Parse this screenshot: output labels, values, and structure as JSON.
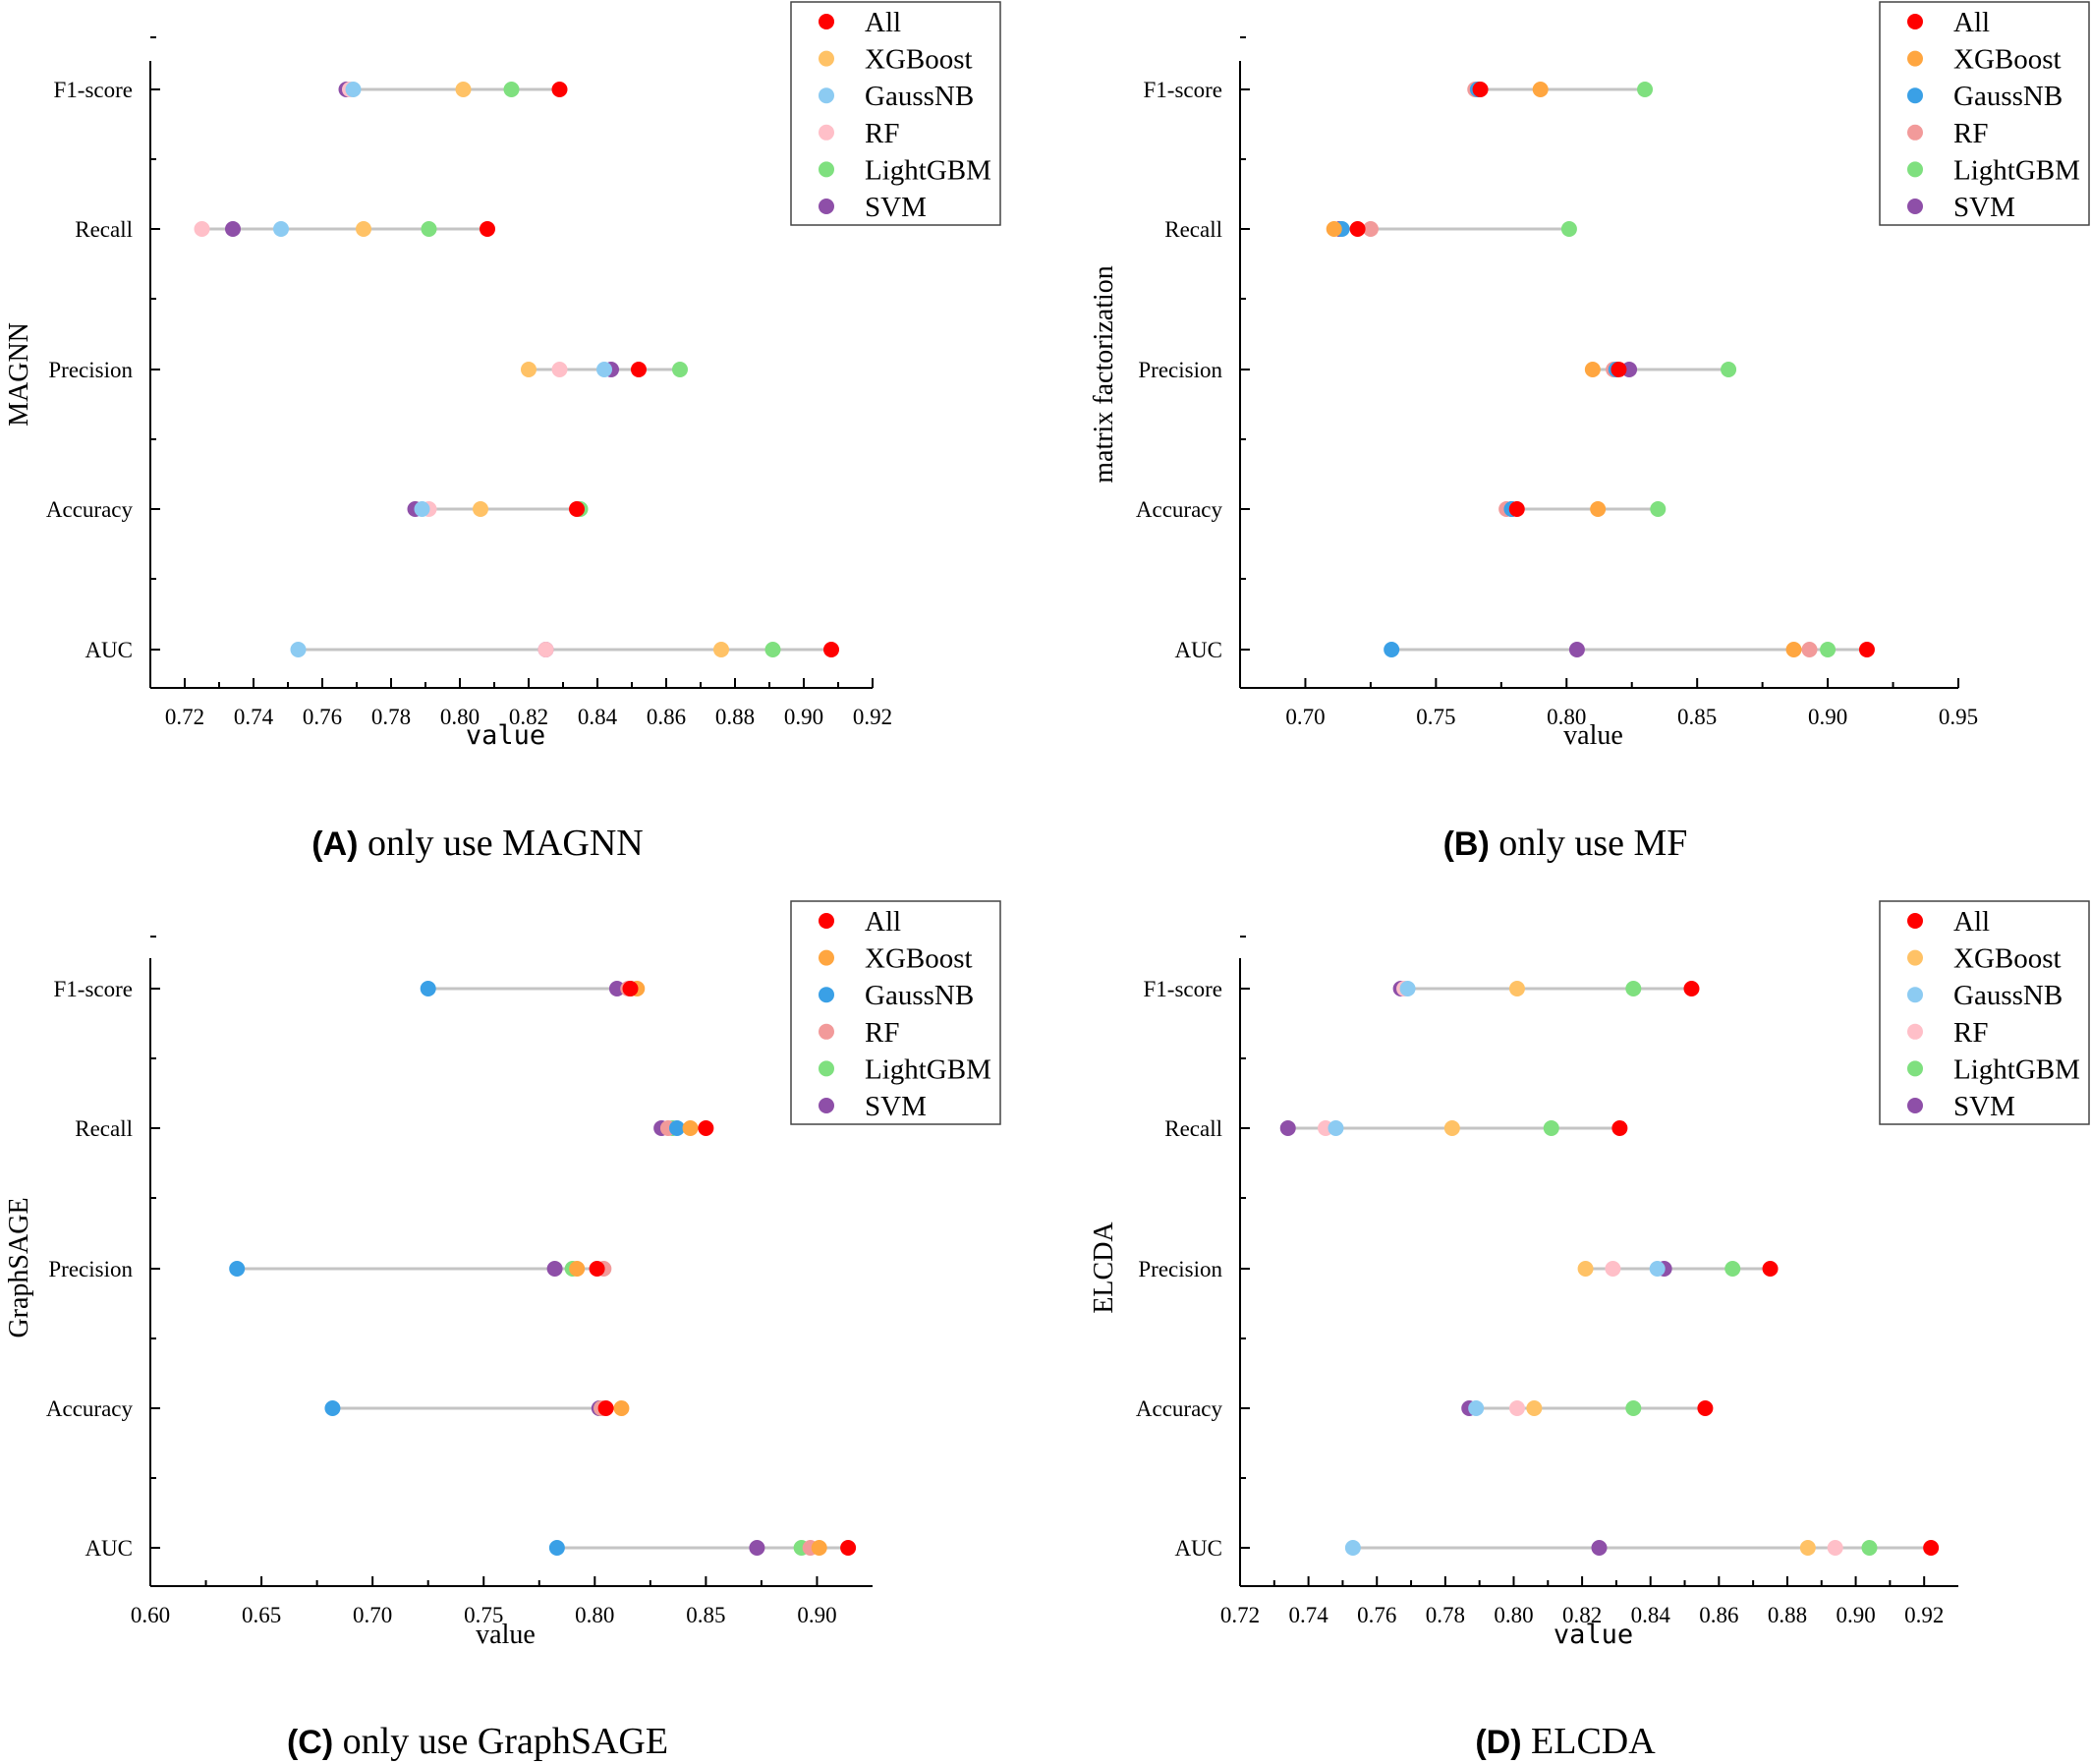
{
  "chart_data": [
    {
      "type": "dot-range",
      "caption_letter": "(A)",
      "caption_text": " only use MAGNN",
      "ylabel": "MAGNN",
      "xlabel": "value",
      "categories": [
        "F1-score",
        "Recall",
        "Precision",
        "Accuracy",
        "AUC"
      ],
      "xlim": [
        0.71,
        0.92
      ],
      "xticks": [
        0.72,
        0.74,
        0.76,
        0.78,
        0.8,
        0.82,
        0.84,
        0.86,
        0.88,
        0.9,
        0.92
      ],
      "tick_decimals": 2,
      "legend": [
        "All",
        "XGBoost",
        "GaussNB",
        "RF",
        "LightGBM",
        "SVM"
      ],
      "colors": {
        "All": "#ff0000",
        "XGBoost": "#ffc266",
        "GaussNB": "#8ccbf2",
        "RF": "#ffbfc8",
        "LightGBM": "#7fe07f",
        "SVM": "#8e4fa8"
      },
      "series": [
        {
          "name": "All",
          "values": [
            0.829,
            0.808,
            0.852,
            0.834,
            0.908
          ]
        },
        {
          "name": "XGBoost",
          "values": [
            0.801,
            0.772,
            0.82,
            0.806,
            0.876
          ]
        },
        {
          "name": "GaussNB",
          "values": [
            0.769,
            0.748,
            0.842,
            0.789,
            0.753
          ]
        },
        {
          "name": "RF",
          "values": [
            0.768,
            0.725,
            0.829,
            0.791,
            0.825
          ]
        },
        {
          "name": "LightGBM",
          "values": [
            0.815,
            0.791,
            0.864,
            0.835,
            0.891
          ]
        },
        {
          "name": "SVM",
          "values": [
            0.767,
            0.734,
            0.844,
            0.787,
            0.825
          ]
        }
      ]
    },
    {
      "type": "dot-range",
      "caption_letter": "(B)",
      "caption_text": " only use MF",
      "ylabel": "matrix factorization",
      "xlabel": "value",
      "categories": [
        "F1-score",
        "Recall",
        "Precision",
        "Accuracy",
        "AUC"
      ],
      "xlim": [
        0.675,
        0.95
      ],
      "xticks": [
        0.7,
        0.75,
        0.8,
        0.85,
        0.9,
        0.95
      ],
      "tick_decimals": 2,
      "legend": [
        "All",
        "XGBoost",
        "GaussNB",
        "RF",
        "LightGBM",
        "SVM"
      ],
      "colors": {
        "All": "#ff0000",
        "XGBoost": "#ffa640",
        "GaussNB": "#3aa0e6",
        "RF": "#f29a9a",
        "LightGBM": "#7fe07f",
        "SVM": "#8e4fa8"
      },
      "series": [
        {
          "name": "All",
          "values": [
            0.767,
            0.72,
            0.82,
            0.781,
            0.915
          ]
        },
        {
          "name": "XGBoost",
          "values": [
            0.79,
            0.711,
            0.81,
            0.812,
            0.887
          ]
        },
        {
          "name": "GaussNB",
          "values": [
            0.766,
            0.714,
            0.819,
            0.779,
            0.733
          ]
        },
        {
          "name": "RF",
          "values": [
            0.765,
            0.725,
            0.818,
            0.777,
            0.893
          ]
        },
        {
          "name": "LightGBM",
          "values": [
            0.83,
            0.801,
            0.862,
            0.835,
            0.9
          ]
        },
        {
          "name": "SVM",
          "values": [
            0.766,
            0.713,
            0.824,
            0.779,
            0.804
          ]
        }
      ]
    },
    {
      "type": "dot-range",
      "caption_letter": "(C)",
      "caption_text": " only use GraphSAGE",
      "ylabel": "GraphSAGE",
      "xlabel": "value",
      "categories": [
        "F1-score",
        "Recall",
        "Precision",
        "Accuracy",
        "AUC"
      ],
      "xlim": [
        0.6,
        0.925
      ],
      "xticks": [
        0.6,
        0.65,
        0.7,
        0.75,
        0.8,
        0.85,
        0.9
      ],
      "tick_decimals": 2,
      "legend": [
        "All",
        "XGBoost",
        "GaussNB",
        "RF",
        "LightGBM",
        "SVM"
      ],
      "colors": {
        "All": "#ff0000",
        "XGBoost": "#ffa640",
        "GaussNB": "#3aa0e6",
        "RF": "#f29a9a",
        "LightGBM": "#7fe07f",
        "SVM": "#8e4fa8"
      },
      "series": [
        {
          "name": "All",
          "values": [
            0.816,
            0.85,
            0.801,
            0.805,
            0.914
          ]
        },
        {
          "name": "XGBoost",
          "values": [
            0.819,
            0.843,
            0.792,
            0.812,
            0.901
          ]
        },
        {
          "name": "GaussNB",
          "values": [
            0.725,
            0.837,
            0.639,
            0.682,
            0.783
          ]
        },
        {
          "name": "RF",
          "values": [
            0.815,
            0.833,
            0.804,
            0.803,
            0.897
          ]
        },
        {
          "name": "LightGBM",
          "values": [
            0.816,
            0.835,
            0.79,
            0.803,
            0.893
          ]
        },
        {
          "name": "SVM",
          "values": [
            0.81,
            0.83,
            0.782,
            0.802,
            0.873
          ]
        }
      ]
    },
    {
      "type": "dot-range",
      "caption_letter": "(D)",
      "caption_text": " ELCDA",
      "ylabel": "ELCDA",
      "xlabel": "value",
      "categories": [
        "F1-score",
        "Recall",
        "Precision",
        "Accuracy",
        "AUC"
      ],
      "xlim": [
        0.72,
        0.93
      ],
      "xticks": [
        0.72,
        0.74,
        0.76,
        0.78,
        0.8,
        0.82,
        0.84,
        0.86,
        0.88,
        0.9,
        0.92
      ],
      "tick_decimals": 2,
      "legend": [
        "All",
        "XGBoost",
        "GaussNB",
        "RF",
        "LightGBM",
        "SVM"
      ],
      "colors": {
        "All": "#ff0000",
        "XGBoost": "#ffc266",
        "GaussNB": "#8ccbf2",
        "RF": "#ffbfc8",
        "LightGBM": "#7fe07f",
        "SVM": "#8e4fa8"
      },
      "series": [
        {
          "name": "All",
          "values": [
            0.852,
            0.831,
            0.875,
            0.856,
            0.922
          ]
        },
        {
          "name": "XGBoost",
          "values": [
            0.801,
            0.782,
            0.821,
            0.806,
            0.886
          ]
        },
        {
          "name": "GaussNB",
          "values": [
            0.769,
            0.748,
            0.842,
            0.789,
            0.753
          ]
        },
        {
          "name": "RF",
          "values": [
            0.768,
            0.745,
            0.829,
            0.801,
            0.894
          ]
        },
        {
          "name": "LightGBM",
          "values": [
            0.835,
            0.811,
            0.864,
            0.835,
            0.904
          ]
        },
        {
          "name": "SVM",
          "values": [
            0.767,
            0.734,
            0.844,
            0.787,
            0.825
          ]
        }
      ]
    }
  ]
}
